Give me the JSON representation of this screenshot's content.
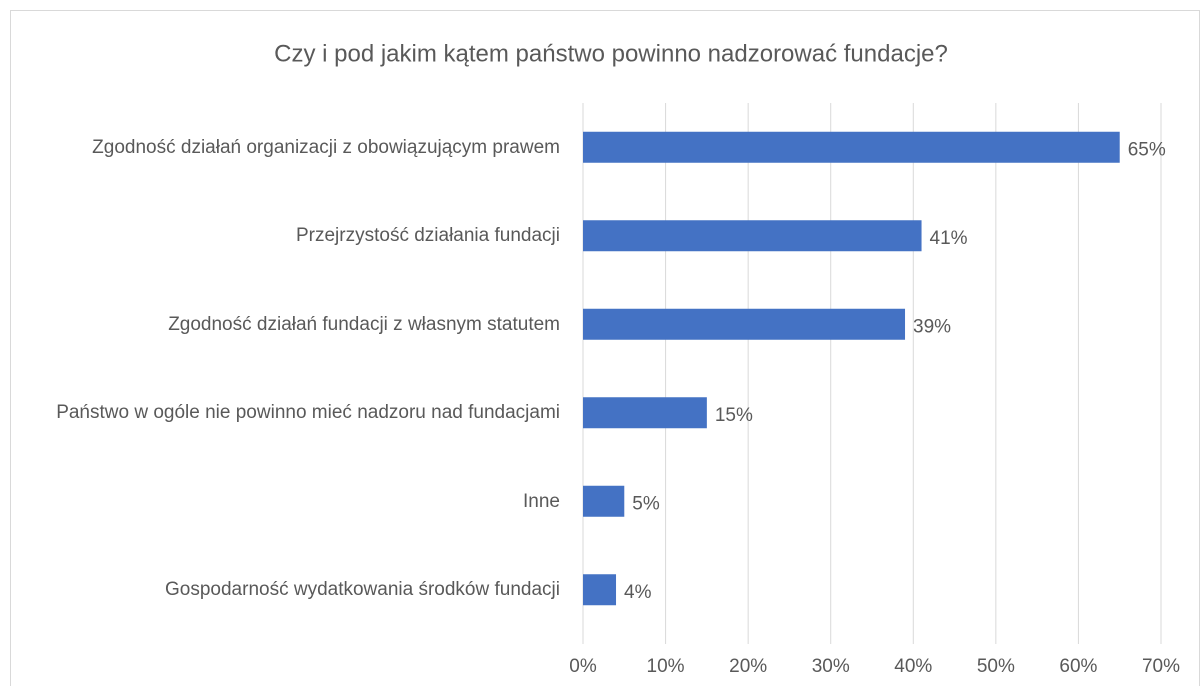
{
  "chart_data": {
    "type": "bar",
    "orientation": "horizontal",
    "title": "Czy i pod jakim kątem państwo powinno nadzorować fundacje?",
    "categories": [
      "Zgodność działań organizacji z obowiązującym prawem",
      "Przejrzystość działania fundacji",
      "Zgodność działań fundacji z własnym statutem",
      "Państwo w ogóle nie powinno mieć nadzoru nad fundacjami",
      "Inne",
      "Gospodarność wydatkowania środków fundacji"
    ],
    "values": [
      65,
      41,
      39,
      15,
      5,
      4
    ],
    "value_labels": [
      "65%",
      "41%",
      "39%",
      "15%",
      "5%",
      "4%"
    ],
    "color": "#4472c4",
    "xlim": [
      0,
      70
    ],
    "xticks": [
      {
        "value": 0,
        "label": "0%"
      },
      {
        "value": 10,
        "label": "10%"
      },
      {
        "value": 20,
        "label": "20%"
      },
      {
        "value": 30,
        "label": "30%"
      },
      {
        "value": 40,
        "label": "40%"
      },
      {
        "value": 50,
        "label": "50%"
      },
      {
        "value": 60,
        "label": "60%"
      },
      {
        "value": 70,
        "label": "70%"
      }
    ],
    "grid": true
  }
}
